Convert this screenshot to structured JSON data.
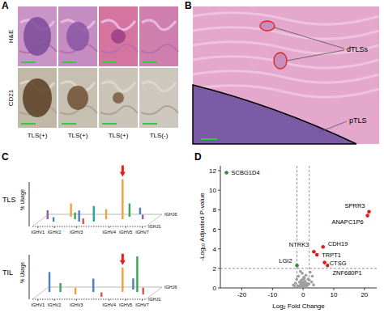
{
  "panel_a": {
    "letter": "A",
    "row_labels": [
      "H&E",
      "CD21"
    ],
    "column_labels": [
      "TLS(+)",
      "TLS(+)",
      "TLS(+)",
      "TLS(-)"
    ]
  },
  "panel_b": {
    "letter": "B",
    "labels": [
      "dTLSs",
      "pTLS"
    ]
  },
  "panel_c": {
    "letter": "C"
  },
  "panel_d": {
    "letter": "D"
  },
  "chart_data": [
    {
      "type": "bar",
      "title": "TLS",
      "y_label": "% Usage",
      "x": [
        3,
        8,
        14,
        18,
        22,
        26,
        30,
        35,
        44,
        46,
        50,
        55
      ],
      "depth": [
        3,
        2,
        4,
        3,
        2,
        1,
        2,
        3,
        3,
        4,
        5,
        3
      ],
      "values": [
        8,
        4,
        12,
        6,
        10,
        5,
        14,
        9,
        36,
        12,
        6,
        4
      ],
      "colors": [
        "#9b59b6",
        "#4a7fc1",
        "#e8a33d",
        "#3aa655",
        "#4a7fc1",
        "#d9534f",
        "#2aa1a1",
        "#e8a33d",
        "#e8a33d",
        "#3aa655",
        "#4a7fc1",
        "#9b59b6"
      ],
      "xlim": [
        0,
        62
      ],
      "xticks": [
        {
          "value": 3,
          "label": "IGHV1"
        },
        {
          "value": 12,
          "label": "IGHV2"
        },
        {
          "value": 24,
          "label": "IGHV3"
        },
        {
          "value": 42,
          "label": "IGHV4"
        },
        {
          "value": 51,
          "label": "IGHV5"
        },
        {
          "value": 60,
          "label": "IGHV7"
        }
      ],
      "ylim": [
        0,
        40
      ],
      "depth_lim": [
        0,
        5
      ],
      "depth_ticks": [
        {
          "value": 0,
          "label": "IGHJ1"
        },
        {
          "value": 5,
          "label": "IGHJ6"
        }
      ],
      "tick_labels": "x",
      "arrow_x": 44
    },
    {
      "type": "bar",
      "title": "TIL",
      "y_label": "% Usage",
      "x": [
        4,
        10,
        20,
        28,
        36,
        44,
        48,
        52,
        57
      ],
      "depth": [
        3,
        3,
        2,
        3,
        1,
        3,
        4,
        3,
        2
      ],
      "values": [
        18,
        8,
        6,
        12,
        4,
        22,
        10,
        32,
        6
      ],
      "colors": [
        "#4a7fc1",
        "#3aa655",
        "#e8a33d",
        "#4a7fc1",
        "#d9534f",
        "#e8a33d",
        "#4a7fc1",
        "#3aa655",
        "#d9534f"
      ],
      "xlim": [
        0,
        62
      ],
      "xticks": [
        {
          "value": 3,
          "label": "IGHV1"
        },
        {
          "value": 12,
          "label": "IGHV2"
        },
        {
          "value": 24,
          "label": "IGHV3"
        },
        {
          "value": 42,
          "label": "IGHV4"
        },
        {
          "value": 51,
          "label": "IGHV5"
        },
        {
          "value": 60,
          "label": "IGHV7"
        }
      ],
      "ylim": [
        0,
        40
      ],
      "depth_lim": [
        0,
        5
      ],
      "depth_ticks": [
        {
          "value": 0,
          "label": "IGHJ1"
        },
        {
          "value": 5,
          "label": "IGHJ6"
        }
      ],
      "tick_labels": "x",
      "arrow_x": 44
    },
    {
      "type": "scatter",
      "x_label": "Log₂ Fold Change",
      "y_label": "-Log₁₀ Adjusted P-value",
      "xlim": [
        -27,
        24
      ],
      "ylim": [
        0,
        12.5
      ],
      "xticks": [
        -20,
        -10,
        0,
        10,
        20
      ],
      "yticks": [
        0,
        2,
        4,
        6,
        8,
        10,
        12
      ],
      "thresholds": {
        "x": [
          -2,
          2
        ],
        "y": 2
      },
      "series": [
        {
          "color": "#9e9e9e",
          "x": [
            -3.2,
            -2.5,
            -2.1,
            -1.8,
            -1.5,
            -1.2,
            -1.0,
            -0.8,
            -0.6,
            -0.5,
            -0.3,
            -0.2,
            -0.1,
            0,
            0.1,
            0.2,
            0.3,
            0.4,
            0.5,
            0.6,
            0.7,
            0.9,
            1.1,
            1.3,
            1.6,
            1.9,
            2.3,
            2.8,
            3.4,
            -0.4,
            0.2,
            0.8,
            -0.9,
            1.5,
            -1.4,
            0,
            2.0,
            -2.8,
            3.0,
            -0.7
          ],
          "values": [
            0.3,
            0.5,
            0.9,
            0.2,
            1.2,
            0.6,
            0.1,
            0.4,
            0.8,
            0.2,
            1.5,
            0.3,
            0.1,
            0.05,
            0.2,
            0.6,
            0.4,
            1.0,
            0.15,
            0.7,
            0.3,
            1.3,
            0.5,
            0.2,
            0.9,
            0.4,
            1.6,
            0.6,
            0.3,
            0.5,
            1.1,
            0.1,
            1.7,
            0.4,
            0.2,
            0.9,
            0.8,
            0.2,
            1.2,
            0.6
          ]
        },
        {
          "color": "#e31a1c",
          "x": [
            21.5,
            21,
            3.5,
            6.5,
            4.5,
            7,
            8
          ],
          "values": [
            7.8,
            7.4,
            3.7,
            4.2,
            3.4,
            2.6,
            2.3
          ],
          "labels": [
            "SPRR3",
            "ANAPC1P6",
            "NTRK3",
            "CDH19",
            "TRPT1",
            "CTSG",
            "ZNF680P1"
          ]
        },
        {
          "color": "#2e8b3a",
          "x": [
            -25,
            -2
          ],
          "values": [
            11.8,
            2.3
          ],
          "labels": [
            "SCBG1D4",
            "LGI2"
          ]
        }
      ]
    }
  ]
}
